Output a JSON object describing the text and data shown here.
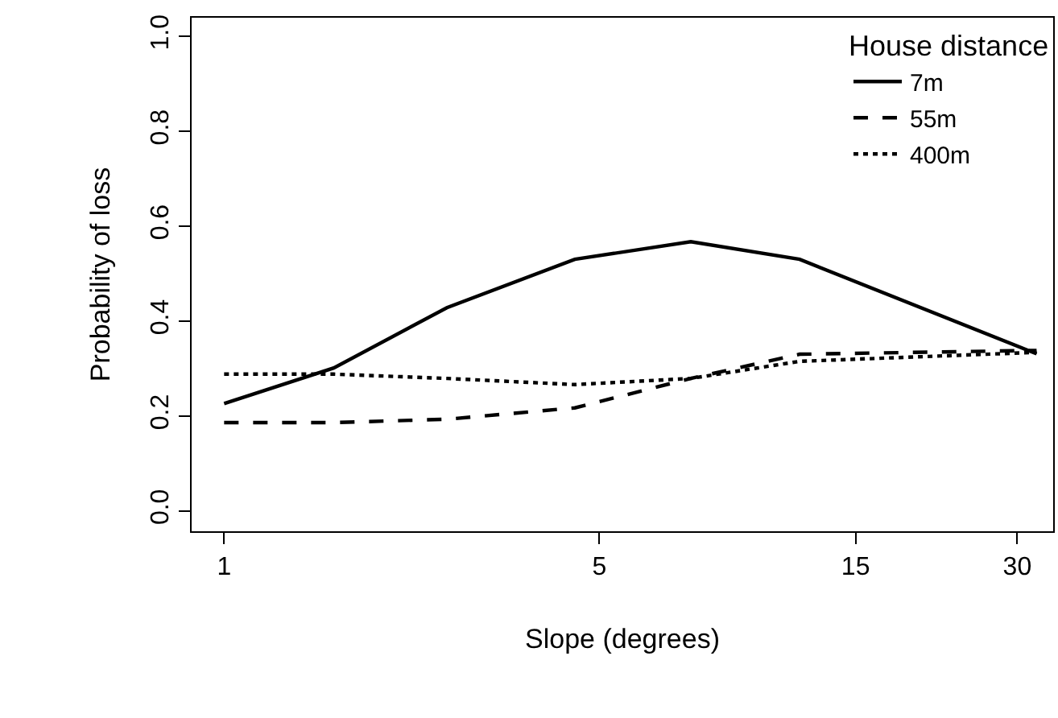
{
  "chart_data": {
    "type": "line",
    "xlabel": "Slope (degrees)",
    "ylabel": "Probability of loss",
    "legend_title": "House distance",
    "x": [
      1,
      1.6,
      2.6,
      4.5,
      7.4,
      11.8,
      32.6
    ],
    "series": [
      {
        "name": "7m",
        "color": "#000000",
        "line_style": "solid",
        "values": [
          0.226,
          0.301,
          0.428,
          0.53,
          0.567,
          0.53,
          0.331
        ]
      },
      {
        "name": "55m",
        "color": "#000000",
        "line_style": "dashed",
        "values": [
          0.186,
          0.186,
          0.193,
          0.217,
          0.279,
          0.33,
          0.338
        ]
      },
      {
        "name": "400m",
        "color": "#000000",
        "line_style": "dotted",
        "values": [
          0.288,
          0.288,
          0.279,
          0.266,
          0.279,
          0.315,
          0.334
        ]
      }
    ],
    "log": "x",
    "xlim": [
      0.87,
      35
    ],
    "xticks": [
      1,
      5,
      15,
      30
    ],
    "ylim": [
      -0.043,
      1.039
    ],
    "yticks": [
      {
        "value": 0,
        "label": "0.0"
      },
      {
        "value": 0.2,
        "label": "0.2"
      },
      {
        "value": 0.4,
        "label": "0.4"
      },
      {
        "value": 0.6,
        "label": "0.6"
      },
      {
        "value": 0.8,
        "label": "0.8"
      },
      {
        "value": 1,
        "label": "1.0"
      }
    ],
    "legend": "top right",
    "marker": "none"
  }
}
